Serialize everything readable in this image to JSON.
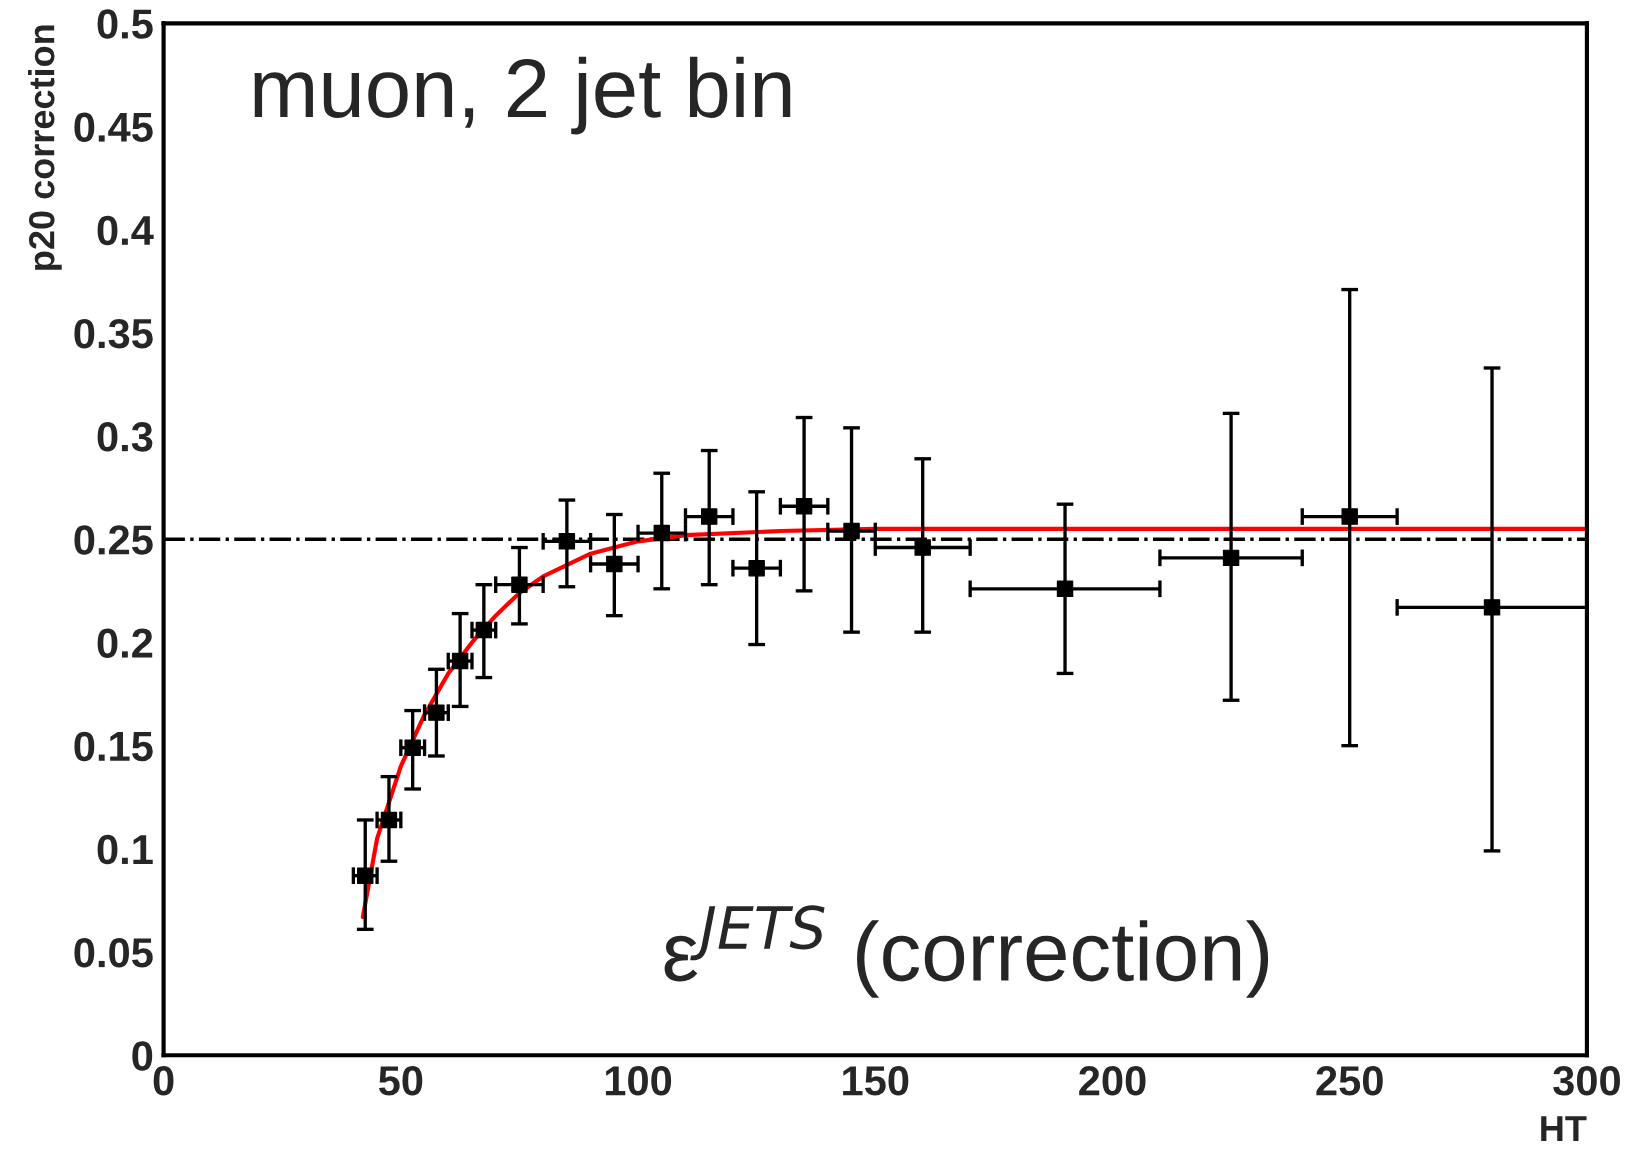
{
  "chart_data": {
    "type": "scatter",
    "xlabel": "HT",
    "ylabel": "p20 correction",
    "annotations": [
      "muon, 2 jet bin",
      "ε$^{JETS}$ (correction)"
    ],
    "xlim": [
      0,
      300
    ],
    "ylim": [
      0,
      0.5
    ],
    "xticks": [
      0,
      50,
      100,
      150,
      200,
      250,
      300
    ],
    "yticks": [
      0,
      0.05,
      0.1,
      0.15,
      0.2,
      0.25,
      0.3,
      0.35,
      0.4,
      0.45,
      0.5
    ],
    "grid": false,
    "legend": false,
    "ref_lines": [
      {
        "axis": "y",
        "value": 0.25,
        "color": "#000000",
        "line_style": "dashdot"
      }
    ],
    "series": [
      {
        "color": "#000000",
        "marker": "square",
        "x": [
          42.5,
          47.5,
          52.5,
          57.5,
          62.5,
          67.5,
          75,
          85,
          95,
          105,
          115,
          125,
          135,
          145,
          160,
          190,
          225,
          250,
          280
        ],
        "values": [
          0.087,
          0.114,
          0.149,
          0.166,
          0.191,
          0.206,
          0.228,
          0.249,
          0.238,
          0.253,
          0.261,
          0.236,
          0.266,
          0.254,
          0.246,
          0.226,
          0.241,
          0.261,
          0.217
        ],
        "errors": [
          [
            0.061,
            0.114
          ],
          [
            0.094,
            0.135
          ],
          [
            0.129,
            0.167
          ],
          [
            0.145,
            0.187
          ],
          [
            0.169,
            0.214
          ],
          [
            0.183,
            0.228
          ],
          [
            0.209,
            0.246
          ],
          [
            0.227,
            0.269
          ],
          [
            0.213,
            0.262
          ],
          [
            0.226,
            0.282
          ],
          [
            0.228,
            0.293
          ],
          [
            0.199,
            0.273
          ],
          [
            0.225,
            0.309
          ],
          [
            0.205,
            0.304
          ],
          [
            0.205,
            0.289
          ],
          [
            0.185,
            0.267
          ],
          [
            0.172,
            0.311
          ],
          [
            0.15,
            0.371
          ],
          [
            0.099,
            0.333
          ]
        ],
        "xerrors": [
          2.5,
          2.5,
          2.5,
          2.5,
          2.5,
          2.5,
          5,
          5,
          5,
          5,
          5,
          5,
          5,
          5,
          10,
          20,
          15,
          10,
          20
        ]
      },
      {
        "type": "line",
        "color": "#ff0000",
        "marker": "none",
        "line_style": "solid",
        "x": [
          42,
          45,
          50,
          55,
          60,
          65,
          70,
          75,
          80,
          90,
          100,
          110,
          130,
          150,
          200,
          300
        ],
        "values": [
          0.067,
          0.105,
          0.14,
          0.165,
          0.185,
          0.2,
          0.213,
          0.224,
          0.232,
          0.243,
          0.249,
          0.252,
          0.254,
          0.255,
          0.255,
          0.255
        ]
      }
    ]
  }
}
